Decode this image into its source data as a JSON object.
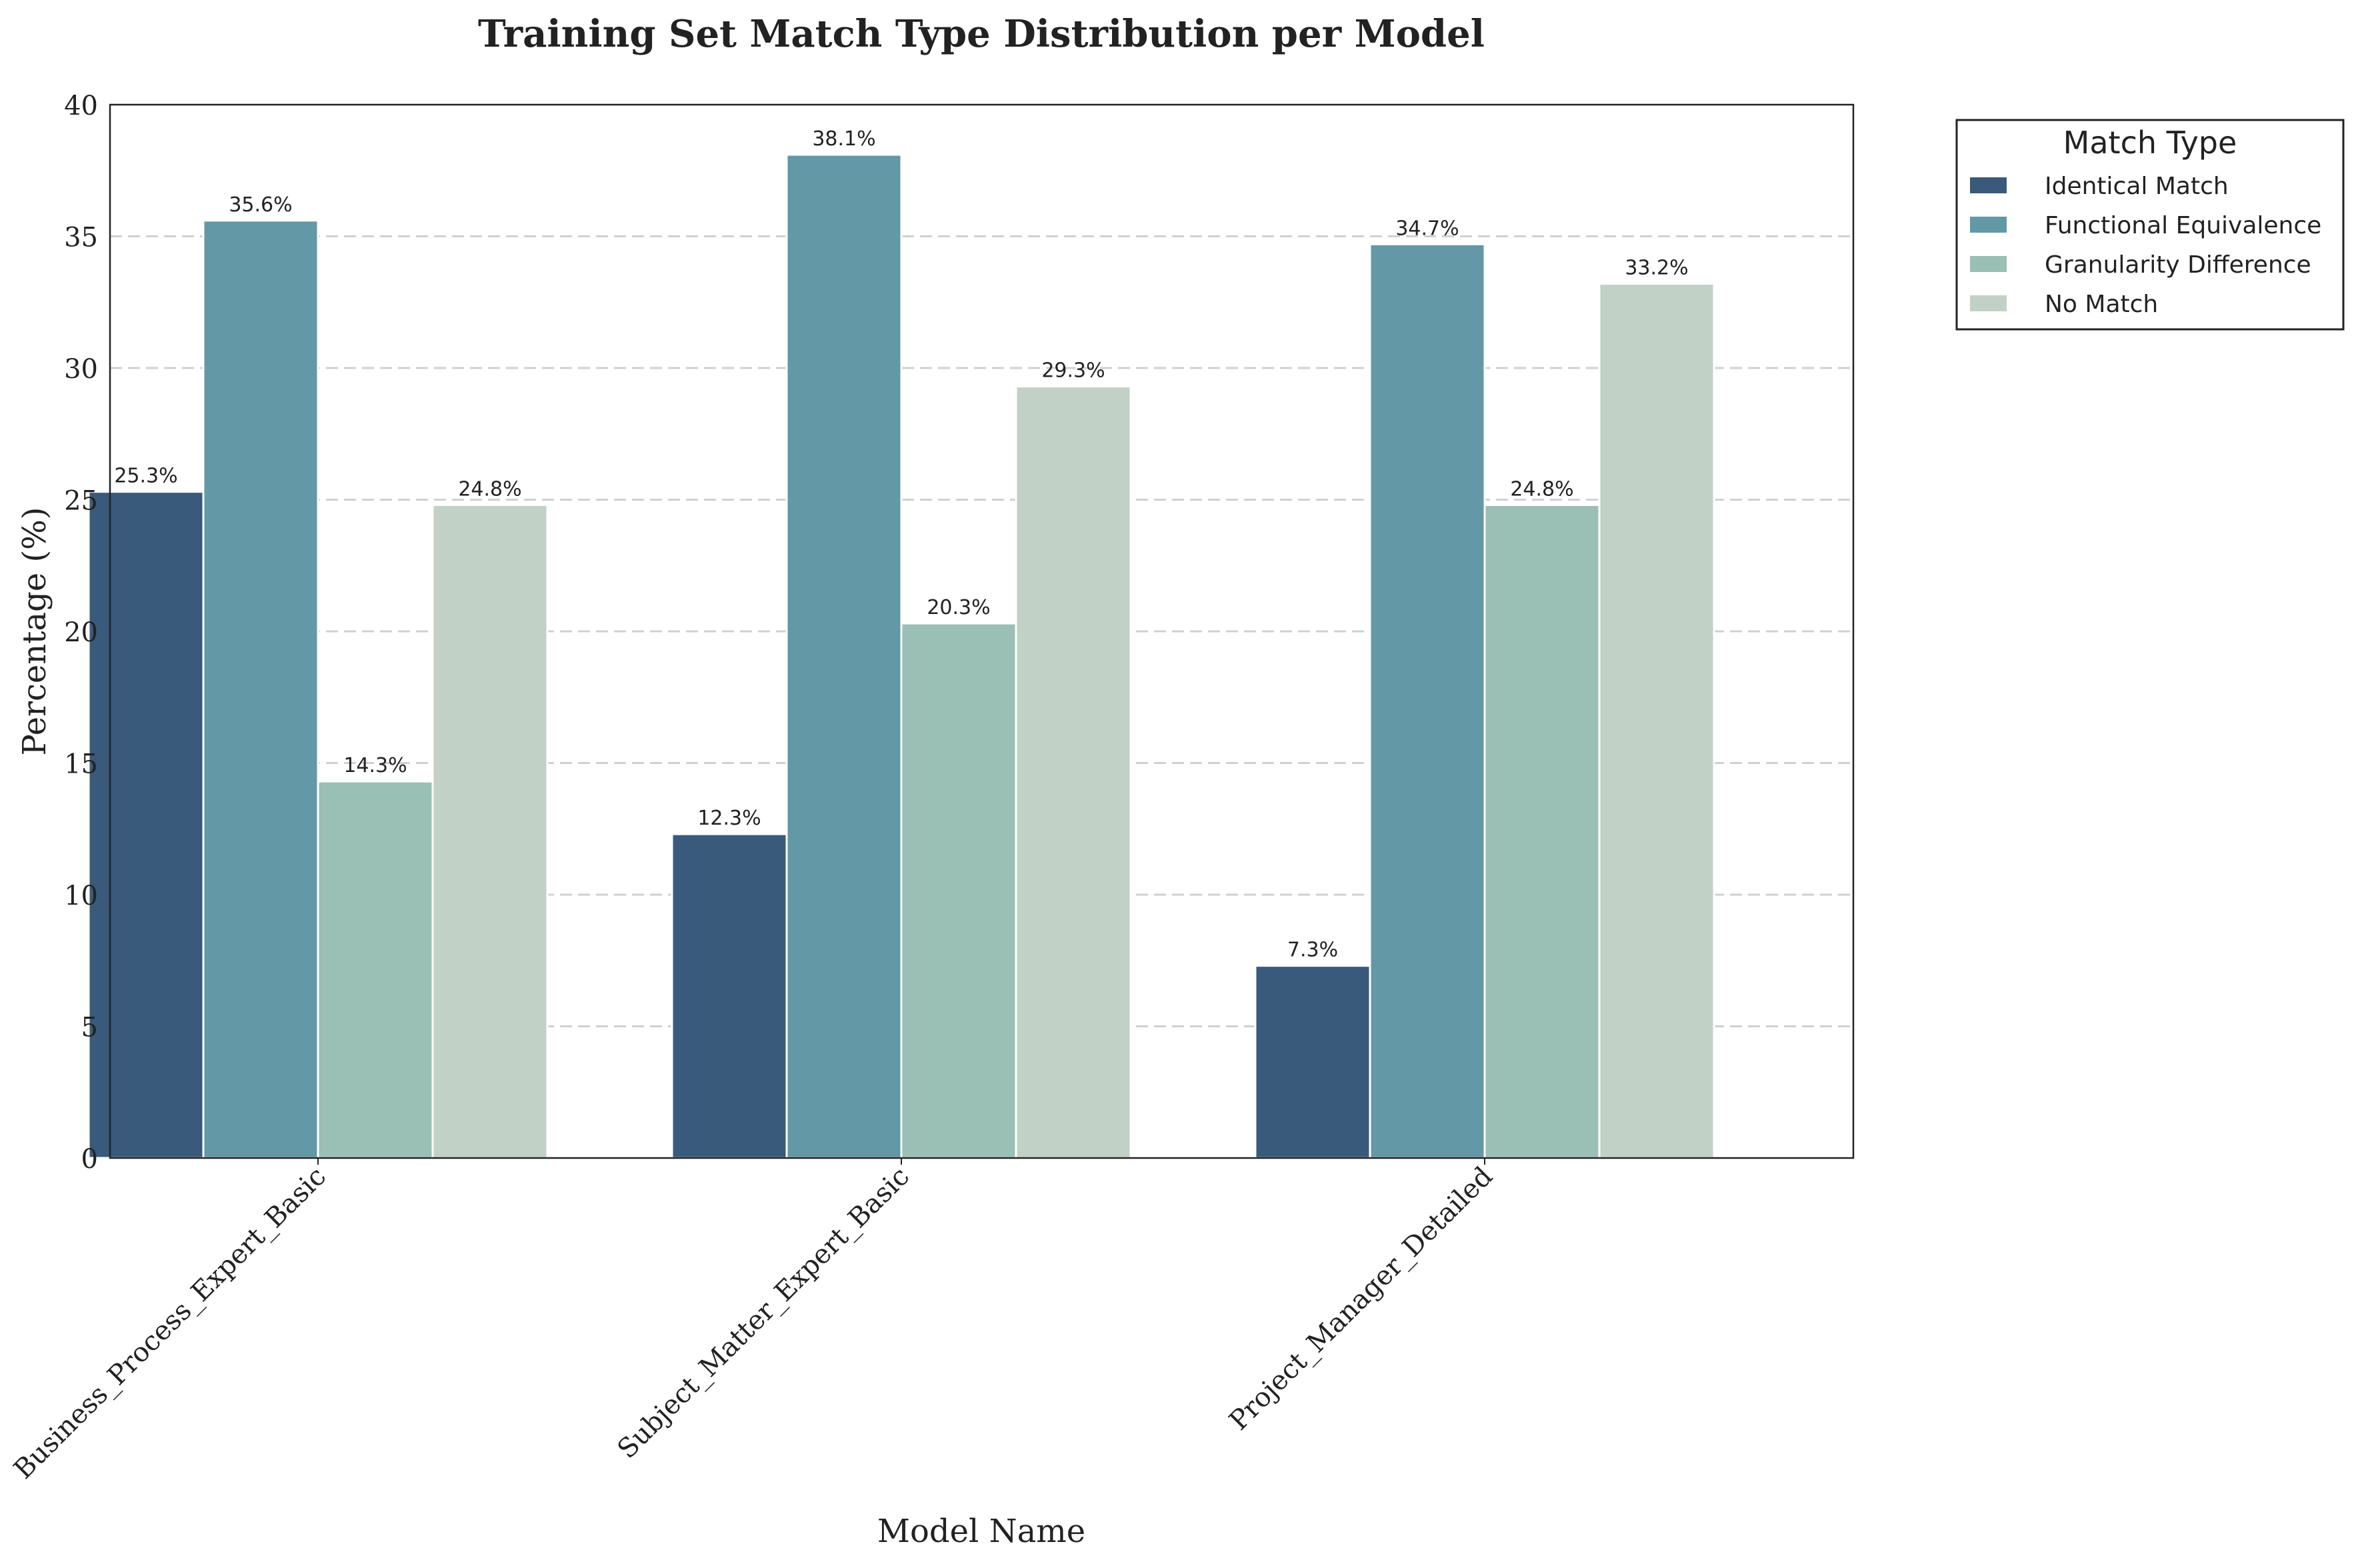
{
  "chart_data": {
    "type": "bar",
    "title": "Training Set Match Type Distribution per Model",
    "xlabel": "Model Name",
    "ylabel": "Percentage (%)",
    "ylim": [
      0,
      40
    ],
    "yticks": [
      0,
      5,
      10,
      15,
      20,
      25,
      30,
      35,
      40
    ],
    "grid": "y-dashed",
    "categories": [
      "Business_Process_Expert_Basic",
      "Subject_Matter_Expert_Basic",
      "Project_Manager_Detailed"
    ],
    "series": [
      {
        "name": "Identical Match",
        "color": "#395a7a",
        "values": [
          25.3,
          12.3,
          7.3
        ]
      },
      {
        "name": "Functional Equivalence",
        "color": "#6398a6",
        "values": [
          35.6,
          38.1,
          34.7
        ]
      },
      {
        "name": "Granularity Difference",
        "color": "#9abfb5",
        "values": [
          14.3,
          20.3,
          24.8
        ]
      },
      {
        "name": "No Match",
        "color": "#c1d1c5",
        "values": [
          24.8,
          29.3,
          33.2
        ]
      }
    ],
    "value_label_suffix": "%",
    "legend": {
      "title": "Match Type",
      "placement": "outside-top-right"
    }
  }
}
